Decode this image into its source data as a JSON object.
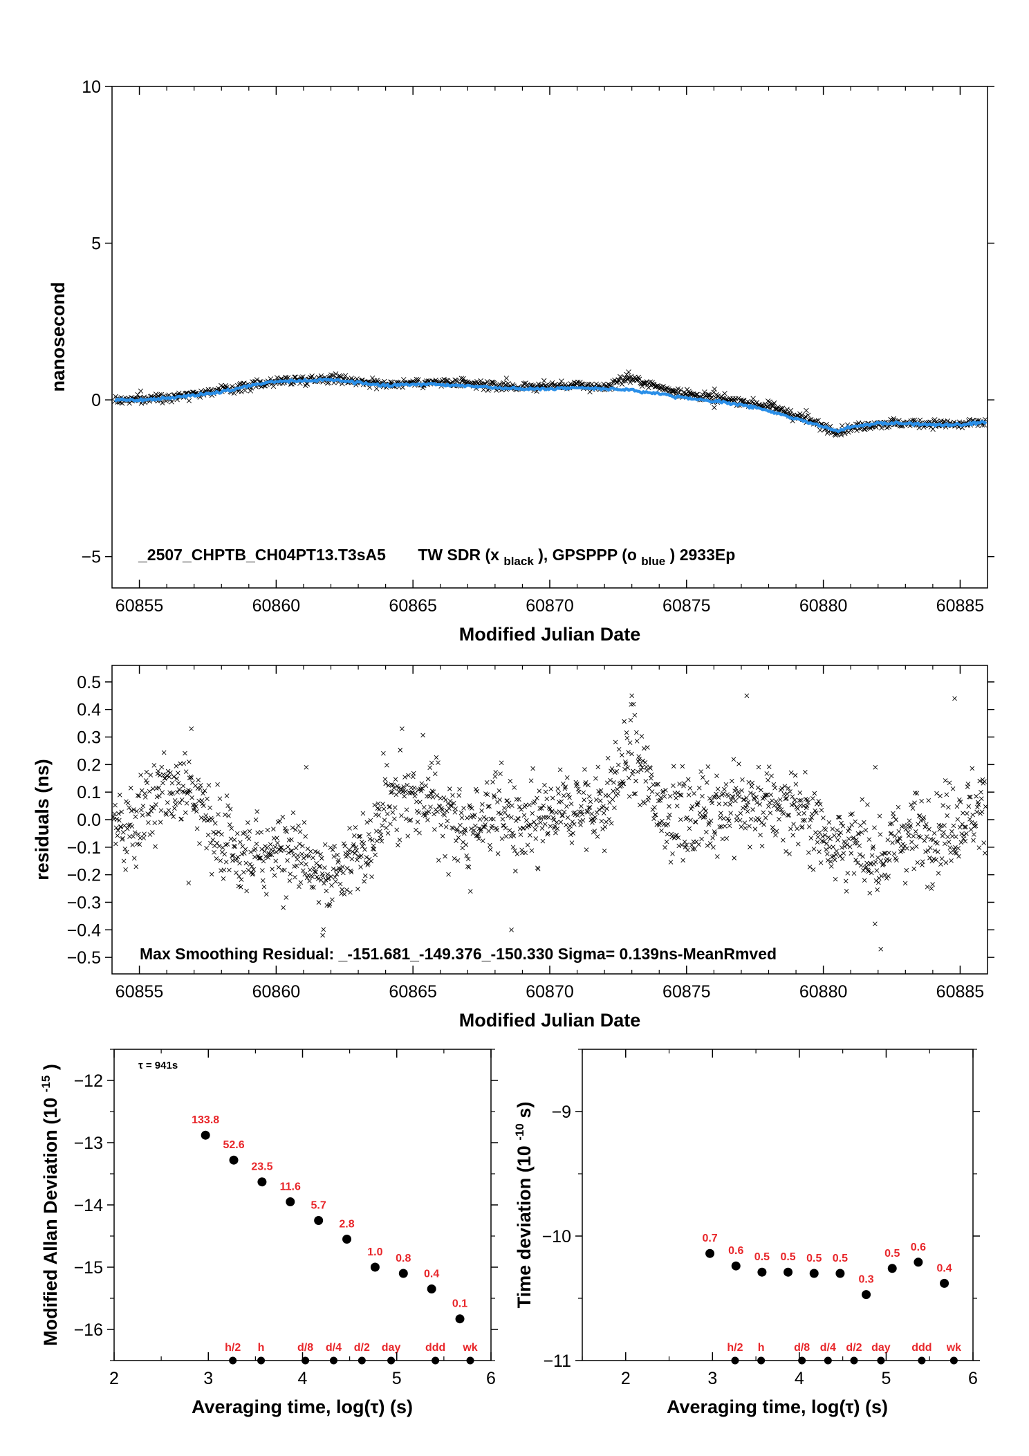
{
  "colors": {
    "black_series": "#000000",
    "blue_series": "#2a8fe8",
    "label_red": "#e8262a"
  },
  "chart_data": [
    {
      "id": "phase",
      "type": "scatter",
      "xlabel": "Modified Julian Date",
      "ylabel": "nanosecond",
      "xlim": [
        60854.0,
        60886.0
      ],
      "ylim": [
        -6,
        10
      ],
      "xticks": [
        "60855",
        "60860",
        "60865",
        "60870",
        "60875",
        "60880",
        "60885"
      ],
      "xtick_values": [
        60855,
        60860,
        60865,
        60870,
        60875,
        60880,
        60885
      ],
      "yticks": [
        "−5",
        "0",
        "5",
        "10"
      ],
      "ytick_values": [
        -5,
        0,
        5,
        10
      ],
      "annotation": {
        "name": "_2507_CHPTB_CH04PT13.T3sA5",
        "tw": "TW SDR (x",
        "tw_sub": "black",
        "gps": "),  GPSPPP (o",
        "gps_sub": "blue",
        "tail": ")  2933Ep"
      },
      "series": [
        {
          "name": "TW SDR",
          "marker": "x",
          "color": "#000000",
          "x": [
            60854.1,
            60855,
            60856,
            60857,
            60858,
            60859,
            60860,
            60861,
            60862,
            60863,
            60864,
            60865,
            60866,
            60867,
            60868,
            60869,
            60870,
            60871,
            60872,
            60872.8,
            60873.5,
            60874,
            60875,
            60876,
            60877,
            60878,
            60879,
            60880,
            60880.5,
            60881,
            60882,
            60883,
            60884,
            60885,
            60886
          ],
          "y": [
            0.0,
            0.0,
            0.1,
            0.2,
            0.3,
            0.45,
            0.6,
            0.65,
            0.7,
            0.6,
            0.5,
            0.55,
            0.55,
            0.5,
            0.45,
            0.4,
            0.45,
            0.45,
            0.4,
            0.7,
            0.55,
            0.4,
            0.2,
            0.05,
            -0.05,
            -0.2,
            -0.5,
            -0.85,
            -1.0,
            -0.9,
            -0.75,
            -0.75,
            -0.75,
            -0.8,
            -0.7
          ]
        },
        {
          "name": "GPSPPP",
          "marker": "o",
          "color": "#2a8fe8",
          "x": [
            60854.1,
            60855,
            60856,
            60857,
            60858,
            60859,
            60860,
            60861,
            60862,
            60863,
            60864,
            60865,
            60866,
            60867,
            60868,
            60869,
            60870,
            60871,
            60872,
            60873,
            60874,
            60875,
            60876,
            60877,
            60878,
            60879,
            60880,
            60880.5,
            60881,
            60882,
            60883,
            60884,
            60885,
            60886
          ],
          "y": [
            0.0,
            0.0,
            0.05,
            0.15,
            0.25,
            0.45,
            0.6,
            0.6,
            0.65,
            0.55,
            0.45,
            0.5,
            0.5,
            0.45,
            0.4,
            0.35,
            0.35,
            0.4,
            0.35,
            0.3,
            0.2,
            0.05,
            -0.05,
            -0.15,
            -0.35,
            -0.6,
            -0.85,
            -1.0,
            -0.85,
            -0.75,
            -0.75,
            -0.8,
            -0.8,
            -0.7
          ]
        }
      ]
    },
    {
      "id": "residuals",
      "type": "scatter",
      "xlabel": "Modified Julian Date",
      "ylabel": "residuals (ns)",
      "xlim": [
        60854.0,
        60886.0
      ],
      "ylim": [
        -0.56,
        0.56
      ],
      "xticks": [
        "60855",
        "60860",
        "60865",
        "60870",
        "60875",
        "60880",
        "60885"
      ],
      "xtick_values": [
        60855,
        60860,
        60865,
        60870,
        60875,
        60880,
        60885
      ],
      "yticks": [
        "0.5",
        "0.4",
        "0.3",
        "0.2",
        "0.1",
        "0.0",
        "−0.1",
        "−0.2",
        "−0.3",
        "−0.4",
        "−0.5"
      ],
      "ytick_values": [
        0.5,
        0.4,
        0.3,
        0.2,
        0.1,
        0.0,
        -0.1,
        -0.2,
        -0.3,
        -0.4,
        -0.5
      ],
      "annotation": "Max Smoothing Residual: _-151.681_-149.376_-150.330  Sigma= 0.139ns-MeanRmved",
      "trend": {
        "x": [
          60854,
          60855,
          60856,
          60857,
          60858,
          60859,
          60860,
          60861,
          60862,
          60863,
          60864,
          60865,
          60866,
          60867,
          60868,
          60869,
          60870,
          60871,
          60872,
          60873,
          60874,
          60875,
          60876,
          60877,
          60878,
          60879,
          60880,
          60881,
          60882,
          60883,
          60884,
          60885,
          60886
        ],
        "y": [
          -0.05,
          0.0,
          0.1,
          0.1,
          -0.1,
          -0.15,
          -0.1,
          -0.15,
          -0.2,
          -0.15,
          0.05,
          0.1,
          0.05,
          -0.05,
          0.05,
          -0.05,
          0.0,
          0.05,
          0.05,
          0.25,
          0.05,
          0.0,
          0.05,
          0.05,
          0.05,
          0.05,
          -0.05,
          -0.1,
          -0.15,
          -0.05,
          -0.05,
          0.0,
          0.05
        ]
      },
      "sigma": 0.139,
      "outliers": [
        {
          "x": 60856.9,
          "y": 0.33
        },
        {
          "x": 60861.1,
          "y": 0.19
        },
        {
          "x": 60864.6,
          "y": 0.33
        },
        {
          "x": 60868.6,
          "y": -0.4
        },
        {
          "x": 60873.0,
          "y": 0.45
        },
        {
          "x": 60877.2,
          "y": 0.45
        },
        {
          "x": 60882.1,
          "y": -0.47
        },
        {
          "x": 60881.9,
          "y": 0.19
        },
        {
          "x": 60884.8,
          "y": 0.44
        },
        {
          "x": 60861.7,
          "y": -0.42
        },
        {
          "x": 60856.8,
          "y": -0.23
        },
        {
          "x": 60867.1,
          "y": -0.26
        }
      ]
    },
    {
      "id": "mdev",
      "type": "scatter",
      "xlabel": "Averaging time, log(τ) (s)",
      "ylabel": "Modified Allan Deviation (10",
      "ylabel_sup": "-15",
      "ylabel_end": ")",
      "xlim": [
        2,
        6
      ],
      "ylim": [
        -16.5,
        -11.5
      ],
      "xticks": [
        "2",
        "3",
        "4",
        "5",
        "6"
      ],
      "xtick_values": [
        2,
        3,
        4,
        5,
        6
      ],
      "yticks": [
        "−12",
        "−13",
        "−14",
        "−15",
        "−16"
      ],
      "ytick_values": [
        -12,
        -13,
        -14,
        -15,
        -16
      ],
      "tau_note": "τ = 941s",
      "points": [
        {
          "x": 2.97,
          "y": -12.88,
          "label": "133.8"
        },
        {
          "x": 3.27,
          "y": -13.28,
          "label": "52.6"
        },
        {
          "x": 3.57,
          "y": -13.63,
          "label": "23.5"
        },
        {
          "x": 3.87,
          "y": -13.95,
          "label": "11.6"
        },
        {
          "x": 4.17,
          "y": -14.25,
          "label": "5.7"
        },
        {
          "x": 4.47,
          "y": -14.55,
          "label": "2.8"
        },
        {
          "x": 4.77,
          "y": -15.0,
          "label": "1.0"
        },
        {
          "x": 5.07,
          "y": -15.1,
          "label": "0.8"
        },
        {
          "x": 5.37,
          "y": -15.35,
          "label": "0.4"
        },
        {
          "x": 5.67,
          "y": -15.83,
          "label": "0.1"
        }
      ],
      "markers": [
        {
          "x": 3.26,
          "label": "h/2"
        },
        {
          "x": 3.56,
          "label": "h"
        },
        {
          "x": 4.03,
          "label": "d/8"
        },
        {
          "x": 4.33,
          "label": "d/4"
        },
        {
          "x": 4.63,
          "label": "d/2"
        },
        {
          "x": 4.94,
          "label": "day"
        },
        {
          "x": 5.41,
          "label": "ddd"
        },
        {
          "x": 5.78,
          "label": "wk"
        }
      ]
    },
    {
      "id": "tdev",
      "type": "scatter",
      "xlabel": "Averaging time, log(τ) (s)",
      "ylabel": "Time deviation (10",
      "ylabel_sup": "-10",
      "ylabel_end": " s)",
      "xlim": [
        1.5,
        6
      ],
      "ylim": [
        -11,
        -8.5
      ],
      "xticks": [
        "2",
        "3",
        "4",
        "5",
        "6"
      ],
      "xtick_values": [
        2,
        3,
        4,
        5,
        6
      ],
      "yticks": [
        "−9",
        "−10",
        "−11"
      ],
      "ytick_values": [
        -9,
        -10,
        -11
      ],
      "points": [
        {
          "x": 2.97,
          "y": -10.14,
          "label": "0.7"
        },
        {
          "x": 3.27,
          "y": -10.24,
          "label": "0.6"
        },
        {
          "x": 3.57,
          "y": -10.29,
          "label": "0.5"
        },
        {
          "x": 3.87,
          "y": -10.29,
          "label": "0.5"
        },
        {
          "x": 4.17,
          "y": -10.3,
          "label": "0.5"
        },
        {
          "x": 4.47,
          "y": -10.3,
          "label": "0.5"
        },
        {
          "x": 4.77,
          "y": -10.47,
          "label": "0.3"
        },
        {
          "x": 5.07,
          "y": -10.26,
          "label": "0.5"
        },
        {
          "x": 5.37,
          "y": -10.21,
          "label": "0.6"
        },
        {
          "x": 5.67,
          "y": -10.38,
          "label": "0.4"
        }
      ],
      "markers": [
        {
          "x": 3.26,
          "label": "h/2"
        },
        {
          "x": 3.56,
          "label": "h"
        },
        {
          "x": 4.03,
          "label": "d/8"
        },
        {
          "x": 4.33,
          "label": "d/4"
        },
        {
          "x": 4.63,
          "label": "d/2"
        },
        {
          "x": 4.94,
          "label": "day"
        },
        {
          "x": 5.41,
          "label": "ddd"
        },
        {
          "x": 5.78,
          "label": "wk"
        }
      ]
    }
  ]
}
